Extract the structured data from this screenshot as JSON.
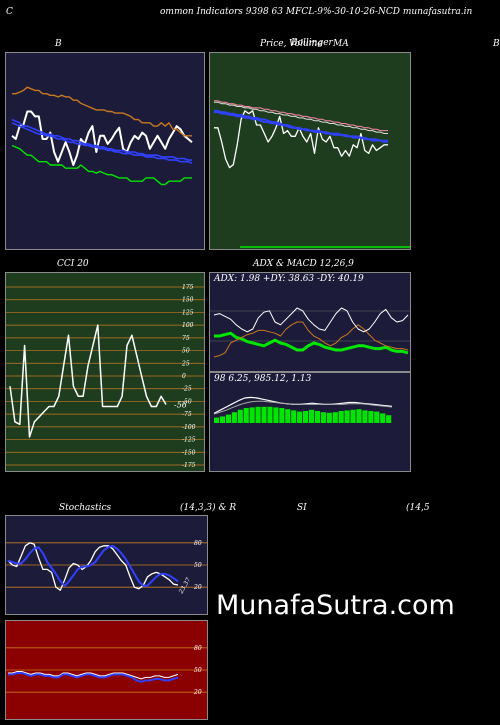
{
  "header": {
    "left": "C",
    "main": "ommon  Indicators 9398                 63 MFCL-9%-30-10-26-NCD munafasutra.in"
  },
  "titles": {
    "bollinger": "B",
    "price": "Price,",
    "volume_overlap": "Volume",
    "bollinger_overlap": "Bollinger",
    "ma": "MA",
    "right_edge": "B",
    "cci": "CCI 20",
    "adx_macd": "ADX  & MACD 12,26,9",
    "stoch": "Stochastics",
    "stoch_params": "(14,3,3) & R",
    "rsi": "SI",
    "rsi_params": "(14,5"
  },
  "brand": "MunafaSutra.com",
  "colors": {
    "navy": "#1c1c3a",
    "green_panel": "#1e3d1e",
    "red_panel": "#8b0000",
    "orange": "#c8781e",
    "green_line": "#00e600",
    "blue": "#3040ff"
  },
  "chart_data": [
    {
      "type": "line",
      "id": "bollinger",
      "ylim": [
        0,
        100
      ],
      "series": [
        {
          "role": "close",
          "color": "#ffffff",
          "values": [
            60,
            58,
            66,
            67,
            75,
            75,
            72,
            72,
            58,
            58,
            62,
            50,
            44,
            50,
            56,
            50,
            42,
            48,
            58,
            55,
            62,
            66,
            50,
            60,
            60,
            55,
            58,
            62,
            65,
            52,
            50,
            56,
            60,
            58,
            62,
            60,
            52,
            56,
            60,
            56,
            52,
            58,
            62,
            66,
            64,
            60,
            58,
            56
          ]
        },
        {
          "role": "upper",
          "color": "#00e600",
          "values": [
            54,
            53,
            52,
            50,
            48,
            48,
            46,
            44,
            44,
            44,
            42,
            42,
            42,
            42,
            40,
            40,
            40,
            40,
            42,
            40,
            38,
            38,
            37,
            38,
            37,
            36,
            36,
            35,
            34,
            34,
            34,
            32,
            32,
            32,
            32,
            34,
            34,
            34,
            32,
            30,
            30,
            32,
            32,
            32,
            32,
            34,
            34,
            34
          ]
        },
        {
          "role": "middle_a",
          "color": "#3040ff",
          "values": [
            70,
            69,
            68,
            66,
            66,
            65,
            64,
            63,
            62,
            61,
            61,
            60,
            60,
            59,
            58,
            58,
            57,
            57,
            56,
            55,
            55,
            54,
            54,
            53,
            53,
            52,
            52,
            51,
            51,
            51,
            50,
            50,
            50,
            49,
            49,
            48,
            48,
            48,
            48,
            47,
            47,
            47,
            47,
            46,
            46,
            46,
            45,
            45
          ]
        },
        {
          "role": "middle_b",
          "color": "#3040ff",
          "values": [
            68,
            67,
            66,
            65,
            64,
            63,
            62,
            61,
            61,
            60,
            60,
            59,
            58,
            58,
            57,
            56,
            56,
            55,
            55,
            54,
            54,
            53,
            53,
            52,
            52,
            51,
            51,
            50,
            50,
            49,
            49,
            49,
            48,
            48,
            48,
            47,
            47,
            47,
            46,
            46,
            46,
            45,
            45,
            45,
            44,
            44,
            44,
            43
          ]
        },
        {
          "role": "lower",
          "color": "#c8781e",
          "values": [
            86,
            86,
            87,
            88,
            90,
            89,
            88,
            88,
            86,
            86,
            85,
            85,
            84,
            85,
            84,
            84,
            82,
            82,
            80,
            79,
            78,
            77,
            76,
            76,
            76,
            75,
            75,
            74,
            74,
            74,
            73,
            72,
            70,
            70,
            68,
            68,
            68,
            66,
            66,
            68,
            66,
            68,
            64,
            64,
            62,
            60,
            60,
            60
          ]
        }
      ]
    },
    {
      "type": "line",
      "id": "price_ma",
      "ylim": [
        0,
        100
      ],
      "series": [
        {
          "role": "price",
          "color": "#ffffff",
          "values": [
            60,
            60,
            50,
            38,
            32,
            34,
            48,
            66,
            72,
            70,
            72,
            62,
            62,
            56,
            50,
            54,
            60,
            68,
            56,
            58,
            54,
            54,
            60,
            54,
            50,
            56,
            42,
            60,
            52,
            50,
            54,
            46,
            46,
            40,
            44,
            40,
            48,
            46,
            56,
            44,
            42,
            48,
            44,
            46,
            48,
            48
          ]
        },
        {
          "role": "ma_blue_a",
          "color": "#3040ff",
          "values": [
            72,
            72,
            71,
            71,
            70,
            70,
            69,
            69,
            68,
            68,
            67,
            67,
            66,
            66,
            65,
            64,
            64,
            63,
            62,
            62,
            61,
            60,
            60,
            59,
            59,
            58,
            58,
            58,
            57,
            57,
            56,
            56,
            56,
            55,
            55,
            54,
            54,
            54,
            53,
            53,
            52,
            52,
            52,
            51,
            51,
            51
          ]
        },
        {
          "role": "ma_blue_b",
          "color": "#3040ff",
          "values": [
            71,
            71,
            70,
            70,
            69,
            69,
            68,
            68,
            67,
            67,
            66,
            66,
            65,
            64,
            64,
            63,
            63,
            62,
            62,
            61,
            60,
            60,
            59,
            59,
            58,
            58,
            57,
            57,
            57,
            56,
            56,
            55,
            55,
            55,
            54,
            54,
            53,
            53,
            53,
            52,
            52,
            51,
            51,
            51,
            50,
            50
          ]
        },
        {
          "role": "ma_white",
          "color": "#dddddd",
          "values": [
            78,
            78,
            77,
            77,
            76,
            76,
            75,
            75,
            74,
            74,
            73,
            73,
            72,
            72,
            71,
            71,
            70,
            70,
            69,
            69,
            68,
            68,
            67,
            67,
            66,
            66,
            65,
            65,
            64,
            64,
            63,
            63,
            62,
            62,
            61,
            61,
            60,
            60,
            59,
            59,
            58,
            58,
            57,
            57,
            56,
            56
          ]
        },
        {
          "role": "ma_pink",
          "color": "#ff88aa",
          "values": [
            79,
            79,
            78,
            78,
            77,
            77,
            76,
            76,
            75,
            75,
            74,
            74,
            74,
            73,
            73,
            72,
            72,
            71,
            71,
            70,
            70,
            69,
            69,
            68,
            68,
            67,
            67,
            66,
            66,
            65,
            65,
            64,
            64,
            63,
            63,
            62,
            62,
            61,
            61,
            60,
            60,
            59,
            59,
            58,
            58,
            58
          ]
        }
      ]
    },
    {
      "type": "line",
      "id": "cci",
      "ylim": [
        -175,
        175
      ],
      "yticks": [
        "175",
        "150",
        "125",
        "100",
        "75",
        "50",
        "25",
        "0",
        "-25",
        "-50",
        "-75",
        "-100",
        "-125",
        "-150",
        "-175"
      ],
      "last_value_label": "-56",
      "series": [
        {
          "role": "cci",
          "color": "#ffffff",
          "values": [
            -20,
            -90,
            -95,
            60,
            -120,
            -90,
            -80,
            -70,
            -60,
            -60,
            -40,
            20,
            80,
            -20,
            -40,
            -40,
            20,
            60,
            100,
            -60,
            -60,
            -60,
            -60,
            -40,
            60,
            80,
            40,
            0,
            -40,
            -60,
            -60,
            -40,
            -56
          ]
        }
      ]
    },
    {
      "type": "line",
      "id": "adx",
      "label": "ADX: 1.98  +DY: 38.63 -DY: 40.19",
      "ylim": [
        0,
        100
      ],
      "series": [
        {
          "role": "plus_di",
          "color": "#00e600",
          "values": [
            50,
            50,
            52,
            54,
            48,
            46,
            42,
            40,
            38,
            36,
            40,
            44,
            40,
            38,
            34,
            30,
            30,
            36,
            40,
            38,
            34,
            32,
            30,
            30,
            32,
            34,
            36,
            36,
            34,
            32,
            32,
            34,
            30,
            28,
            28,
            26
          ]
        },
        {
          "role": "minus_di",
          "color": "#c8781e",
          "values": [
            20,
            22,
            26,
            40,
            44,
            48,
            52,
            54,
            58,
            58,
            56,
            54,
            50,
            60,
            66,
            70,
            70,
            58,
            50,
            46,
            40,
            36,
            40,
            48,
            52,
            60,
            66,
            60,
            52,
            44,
            40,
            36,
            34,
            32,
            32,
            30
          ]
        },
        {
          "role": "adx",
          "color": "#ffffff",
          "values": [
            80,
            82,
            78,
            74,
            66,
            60,
            56,
            60,
            76,
            84,
            86,
            70,
            66,
            74,
            82,
            90,
            86,
            74,
            66,
            60,
            58,
            70,
            82,
            90,
            86,
            70,
            60,
            56,
            60,
            70,
            82,
            88,
            76,
            70,
            72,
            80
          ]
        }
      ]
    },
    {
      "type": "bar",
      "id": "macd",
      "label": "98                  6.25,   985.12,   1.13",
      "ylim": [
        0,
        100
      ],
      "histogram": [
        18,
        22,
        28,
        36,
        44,
        50,
        52,
        54,
        54,
        54,
        52,
        50,
        46,
        42,
        38,
        40,
        44,
        40,
        36,
        34,
        36,
        40,
        42,
        44,
        46,
        42,
        40,
        38,
        32,
        26
      ],
      "series": [
        {
          "role": "macd",
          "color": "#ffffff",
          "values": [
            30,
            40,
            50,
            60,
            70,
            78,
            80,
            78,
            74,
            70,
            66,
            62,
            60,
            58,
            58,
            60,
            62,
            60,
            58,
            58,
            60,
            62,
            64,
            64,
            62,
            60,
            58,
            56,
            54,
            52
          ]
        },
        {
          "role": "signal",
          "color": "#aaaaaa",
          "values": [
            28,
            34,
            40,
            48,
            56,
            62,
            66,
            68,
            68,
            66,
            64,
            62,
            60,
            58,
            58,
            58,
            58,
            58,
            58,
            58,
            58,
            58,
            60,
            60,
            60,
            58,
            56,
            54,
            52,
            50
          ]
        }
      ]
    },
    {
      "type": "line",
      "id": "stochastics",
      "ylim": [
        0,
        100
      ],
      "yticks": [
        "80",
        "50",
        "20"
      ],
      "last_value_label": "23.37",
      "series": [
        {
          "role": "k",
          "color": "#ffffff",
          "values": [
            56,
            50,
            48,
            62,
            76,
            80,
            78,
            60,
            44,
            44,
            40,
            20,
            16,
            30,
            46,
            52,
            50,
            44,
            48,
            56,
            68,
            74,
            76,
            76,
            72,
            64,
            56,
            50,
            34,
            20,
            18,
            22,
            34,
            38,
            40,
            38,
            34,
            30,
            24,
            23
          ]
        },
        {
          "role": "d",
          "color": "#3040ff",
          "values": [
            56,
            54,
            52,
            52,
            58,
            66,
            72,
            74,
            66,
            54,
            46,
            38,
            28,
            22,
            28,
            36,
            44,
            48,
            48,
            50,
            54,
            62,
            70,
            74,
            76,
            72,
            66,
            58,
            48,
            38,
            28,
            22,
            22,
            28,
            34,
            38,
            38,
            36,
            32,
            28
          ]
        }
      ]
    },
    {
      "type": "line",
      "id": "rsi",
      "ylim": [
        0,
        100
      ],
      "yticks": [
        "80",
        "50",
        "20"
      ],
      "series": [
        {
          "role": "rsi_white",
          "color": "#ffffff",
          "values": [
            46,
            46,
            48,
            48,
            46,
            44,
            46,
            46,
            44,
            44,
            42,
            42,
            46,
            46,
            44,
            42,
            44,
            46,
            46,
            44,
            42,
            42,
            44,
            46,
            46,
            46,
            44,
            42,
            40,
            38,
            40,
            40,
            42,
            42,
            40,
            40,
            42,
            44
          ]
        },
        {
          "role": "rsi_blue",
          "color": "#3040ff",
          "values": [
            44,
            44,
            46,
            46,
            44,
            42,
            44,
            44,
            42,
            42,
            40,
            40,
            44,
            44,
            42,
            40,
            42,
            44,
            44,
            42,
            40,
            40,
            42,
            44,
            44,
            44,
            42,
            40,
            36,
            34,
            36,
            36,
            38,
            38,
            36,
            36,
            38,
            40
          ]
        }
      ]
    }
  ]
}
